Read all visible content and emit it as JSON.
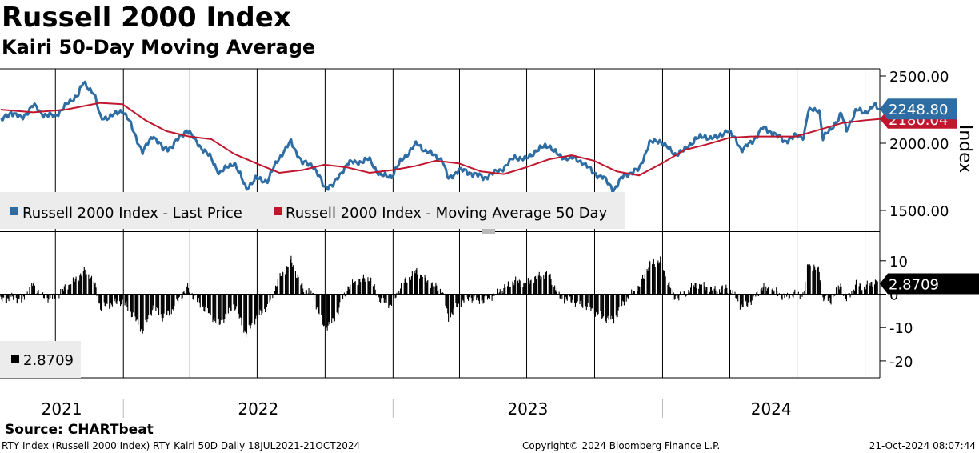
{
  "header": {
    "title": "Russell 2000 Index",
    "subtitle": "Kairi 50-Day Moving Average"
  },
  "footer": {
    "source": "Source: CHARTbeat",
    "left": "RTY Index (Russell 2000 Index) RTY Kairi 50D  Daily 18JUL2021-21OCT2024",
    "center": "Copyright© 2024 Bloomberg Finance L.P.",
    "right": "21-Oct-2024 08:07:44"
  },
  "colors": {
    "price": "#2e6da4",
    "ma": "#c0172f",
    "kairi": "#000000",
    "grid": "#000000",
    "divider": "#b9b9b9",
    "legend_bg": "#ececec"
  },
  "chart_data": [
    {
      "type": "line",
      "panel": "upper",
      "ylabel": "Index",
      "ylim": [
        1500,
        2500
      ],
      "yticks": [
        {
          "value": 2500,
          "label": "2500.00"
        },
        {
          "value": 2000,
          "label": "2000.00"
        },
        {
          "value": 1500,
          "label": "1500.00"
        }
      ],
      "x_range": [
        "2021-07-18",
        "2024-10-21"
      ],
      "year_labels": [
        "2021",
        "2022",
        "2023",
        "2024"
      ],
      "legend": {
        "placement": "bottom-left",
        "entries": [
          "Russell 2000 Index - Last Price",
          "Russell 2000 Index - Moving Average 50 Day"
        ]
      },
      "last_values": {
        "price": "2248.80",
        "ma": "2180.04"
      },
      "series": [
        {
          "name": "Russell 2000 Index - Last Price",
          "points": [
            [
              "2021-07-19",
              2160
            ],
            [
              "2021-08-02",
              2230
            ],
            [
              "2021-08-16",
              2180
            ],
            [
              "2021-09-01",
              2280
            ],
            [
              "2021-09-15",
              2210
            ],
            [
              "2021-09-30",
              2200
            ],
            [
              "2021-10-15",
              2280
            ],
            [
              "2021-11-01",
              2370
            ],
            [
              "2021-11-08",
              2450
            ],
            [
              "2021-11-22",
              2380
            ],
            [
              "2021-12-01",
              2190
            ],
            [
              "2021-12-15",
              2200
            ],
            [
              "2021-12-31",
              2250
            ],
            [
              "2022-01-10",
              2150
            ],
            [
              "2022-01-27",
              1930
            ],
            [
              "2022-02-10",
              2060
            ],
            [
              "2022-02-24",
              1950
            ],
            [
              "2022-03-07",
              1970
            ],
            [
              "2022-03-28",
              2100
            ],
            [
              "2022-04-11",
              2000
            ],
            [
              "2022-04-28",
              1900
            ],
            [
              "2022-05-11",
              1780
            ],
            [
              "2022-05-31",
              1860
            ],
            [
              "2022-06-16",
              1670
            ],
            [
              "2022-06-30",
              1740
            ],
            [
              "2022-07-15",
              1720
            ],
            [
              "2022-07-29",
              1880
            ],
            [
              "2022-08-16",
              2010
            ],
            [
              "2022-08-31",
              1850
            ],
            [
              "2022-09-14",
              1840
            ],
            [
              "2022-09-30",
              1670
            ],
            [
              "2022-10-13",
              1690
            ],
            [
              "2022-10-31",
              1850
            ],
            [
              "2022-11-15",
              1860
            ],
            [
              "2022-11-30",
              1880
            ],
            [
              "2022-12-15",
              1760
            ],
            [
              "2022-12-30",
              1760
            ],
            [
              "2023-01-13",
              1880
            ],
            [
              "2023-02-02",
              2000
            ],
            [
              "2023-02-15",
              1940
            ],
            [
              "2023-03-01",
              1900
            ],
            [
              "2023-03-08",
              1880
            ],
            [
              "2023-03-17",
              1730
            ],
            [
              "2023-03-31",
              1800
            ],
            [
              "2023-04-14",
              1780
            ],
            [
              "2023-05-04",
              1740
            ],
            [
              "2023-05-19",
              1780
            ],
            [
              "2023-06-01",
              1820
            ],
            [
              "2023-06-15",
              1900
            ],
            [
              "2023-06-30",
              1880
            ],
            [
              "2023-07-14",
              1950
            ],
            [
              "2023-07-31",
              1990
            ],
            [
              "2023-08-15",
              1900
            ],
            [
              "2023-08-31",
              1890
            ],
            [
              "2023-09-15",
              1860
            ],
            [
              "2023-09-29",
              1780
            ],
            [
              "2023-10-13",
              1740
            ],
            [
              "2023-10-27",
              1650
            ],
            [
              "2023-11-10",
              1760
            ],
            [
              "2023-11-30",
              1800
            ],
            [
              "2023-12-14",
              2000
            ],
            [
              "2023-12-29",
              2020
            ],
            [
              "2024-01-17",
              1920
            ],
            [
              "2024-01-31",
              1950
            ],
            [
              "2024-02-15",
              2040
            ],
            [
              "2024-02-29",
              2050
            ],
            [
              "2024-03-15",
              2040
            ],
            [
              "2024-03-28",
              2100
            ],
            [
              "2024-04-10",
              2020
            ],
            [
              "2024-04-17",
              1950
            ],
            [
              "2024-04-30",
              2000
            ],
            [
              "2024-05-15",
              2110
            ],
            [
              "2024-05-31",
              2070
            ],
            [
              "2024-06-14",
              2010
            ],
            [
              "2024-06-28",
              2050
            ],
            [
              "2024-07-10",
              2050
            ],
            [
              "2024-07-16",
              2240
            ],
            [
              "2024-07-31",
              2250
            ],
            [
              "2024-08-05",
              2040
            ],
            [
              "2024-08-15",
              2100
            ],
            [
              "2024-08-30",
              2220
            ],
            [
              "2024-09-06",
              2100
            ],
            [
              "2024-09-19",
              2250
            ],
            [
              "2024-09-30",
              2230
            ],
            [
              "2024-10-14",
              2280
            ],
            [
              "2024-10-21",
              2249
            ]
          ]
        },
        {
          "name": "Russell 2000 Index - Moving Average 50 Day",
          "points": [
            [
              "2021-07-19",
              2250
            ],
            [
              "2021-09-01",
              2230
            ],
            [
              "2021-10-15",
              2250
            ],
            [
              "2021-11-30",
              2300
            ],
            [
              "2021-12-31",
              2290
            ],
            [
              "2022-01-31",
              2170
            ],
            [
              "2022-02-28",
              2090
            ],
            [
              "2022-03-31",
              2050
            ],
            [
              "2022-04-30",
              2030
            ],
            [
              "2022-05-31",
              1920
            ],
            [
              "2022-06-30",
              1850
            ],
            [
              "2022-07-31",
              1780
            ],
            [
              "2022-08-31",
              1800
            ],
            [
              "2022-09-30",
              1840
            ],
            [
              "2022-10-31",
              1820
            ],
            [
              "2022-11-30",
              1780
            ],
            [
              "2022-12-31",
              1800
            ],
            [
              "2023-01-31",
              1830
            ],
            [
              "2023-02-28",
              1870
            ],
            [
              "2023-03-31",
              1850
            ],
            [
              "2023-04-30",
              1790
            ],
            [
              "2023-05-31",
              1770
            ],
            [
              "2023-06-30",
              1820
            ],
            [
              "2023-07-31",
              1880
            ],
            [
              "2023-08-31",
              1910
            ],
            [
              "2023-09-30",
              1870
            ],
            [
              "2023-10-31",
              1790
            ],
            [
              "2023-11-30",
              1760
            ],
            [
              "2023-12-31",
              1850
            ],
            [
              "2024-01-31",
              1950
            ],
            [
              "2024-02-29",
              1990
            ],
            [
              "2024-03-31",
              2040
            ],
            [
              "2024-04-30",
              2050
            ],
            [
              "2024-05-31",
              2050
            ],
            [
              "2024-06-30",
              2050
            ],
            [
              "2024-07-31",
              2100
            ],
            [
              "2024-08-31",
              2150
            ],
            [
              "2024-09-30",
              2170
            ],
            [
              "2024-10-21",
              2180
            ]
          ]
        }
      ]
    },
    {
      "type": "bar",
      "panel": "lower",
      "ylim": [
        -23,
        13
      ],
      "yticks": [
        {
          "value": 10,
          "label": "10"
        },
        {
          "value": 0,
          "label": "0"
        },
        {
          "value": -10,
          "label": "-10"
        },
        {
          "value": -20,
          "label": "-20"
        }
      ],
      "legend": {
        "placement": "bottom-left",
        "entries": [
          "2.8709"
        ]
      },
      "last_value": "2.8709",
      "series": [
        {
          "name": "",
          "points": [
            [
              "2021-07-19",
              -2
            ],
            [
              "2021-08-02",
              -1
            ],
            [
              "2021-08-16",
              -2
            ],
            [
              "2021-09-01",
              3
            ],
            [
              "2021-09-15",
              -1
            ],
            [
              "2021-09-30",
              -1
            ],
            [
              "2021-10-15",
              2
            ],
            [
              "2021-11-01",
              5
            ],
            [
              "2021-11-08",
              7
            ],
            [
              "2021-11-22",
              4
            ],
            [
              "2021-12-01",
              -4
            ],
            [
              "2021-12-15",
              -3
            ],
            [
              "2021-12-31",
              -2
            ],
            [
              "2022-01-10",
              -5
            ],
            [
              "2022-01-27",
              -11
            ],
            [
              "2022-02-10",
              -4
            ],
            [
              "2022-02-24",
              -7
            ],
            [
              "2022-03-07",
              -5
            ],
            [
              "2022-03-28",
              2
            ],
            [
              "2022-04-11",
              -2
            ],
            [
              "2022-04-28",
              -6
            ],
            [
              "2022-05-11",
              -9
            ],
            [
              "2022-05-31",
              -3
            ],
            [
              "2022-06-16",
              -12
            ],
            [
              "2022-06-30",
              -7
            ],
            [
              "2022-07-15",
              -4
            ],
            [
              "2022-07-29",
              4
            ],
            [
              "2022-08-16",
              10
            ],
            [
              "2022-08-31",
              2
            ],
            [
              "2022-09-14",
              0
            ],
            [
              "2022-09-30",
              -10
            ],
            [
              "2022-10-13",
              -8
            ],
            [
              "2022-10-31",
              2
            ],
            [
              "2022-11-15",
              4
            ],
            [
              "2022-11-30",
              5
            ],
            [
              "2022-12-15",
              -2
            ],
            [
              "2022-12-30",
              -3
            ],
            [
              "2023-01-13",
              3
            ],
            [
              "2023-02-02",
              7
            ],
            [
              "2023-02-15",
              4
            ],
            [
              "2023-03-01",
              2
            ],
            [
              "2023-03-08",
              1
            ],
            [
              "2023-03-17",
              -7
            ],
            [
              "2023-03-31",
              -3
            ],
            [
              "2023-04-14",
              -1
            ],
            [
              "2023-05-04",
              -2
            ],
            [
              "2023-05-19",
              0
            ],
            [
              "2023-06-01",
              2
            ],
            [
              "2023-06-15",
              4
            ],
            [
              "2023-06-30",
              3
            ],
            [
              "2023-07-14",
              5
            ],
            [
              "2023-07-31",
              6
            ],
            [
              "2023-08-15",
              -1
            ],
            [
              "2023-08-31",
              -2
            ],
            [
              "2023-09-15",
              -3
            ],
            [
              "2023-09-29",
              -5
            ],
            [
              "2023-10-13",
              -7
            ],
            [
              "2023-10-27",
              -8
            ],
            [
              "2023-11-10",
              -2
            ],
            [
              "2023-11-30",
              2
            ],
            [
              "2023-12-14",
              9
            ],
            [
              "2023-12-29",
              10
            ],
            [
              "2024-01-17",
              -1
            ],
            [
              "2024-01-31",
              0
            ],
            [
              "2024-02-15",
              3
            ],
            [
              "2024-02-29",
              2
            ],
            [
              "2024-03-15",
              1
            ],
            [
              "2024-03-28",
              2
            ],
            [
              "2024-04-10",
              -1
            ],
            [
              "2024-04-17",
              -4
            ],
            [
              "2024-04-30",
              -2
            ],
            [
              "2024-05-15",
              2
            ],
            [
              "2024-05-31",
              1
            ],
            [
              "2024-06-14",
              -1
            ],
            [
              "2024-06-28",
              0
            ],
            [
              "2024-07-10",
              0
            ],
            [
              "2024-07-16",
              9
            ],
            [
              "2024-07-31",
              7
            ],
            [
              "2024-08-05",
              -1
            ],
            [
              "2024-08-15",
              -2
            ],
            [
              "2024-08-30",
              3
            ],
            [
              "2024-09-06",
              -2
            ],
            [
              "2024-09-19",
              3
            ],
            [
              "2024-09-30",
              2
            ],
            [
              "2024-10-14",
              4
            ],
            [
              "2024-10-21",
              2.87
            ]
          ]
        }
      ]
    }
  ]
}
